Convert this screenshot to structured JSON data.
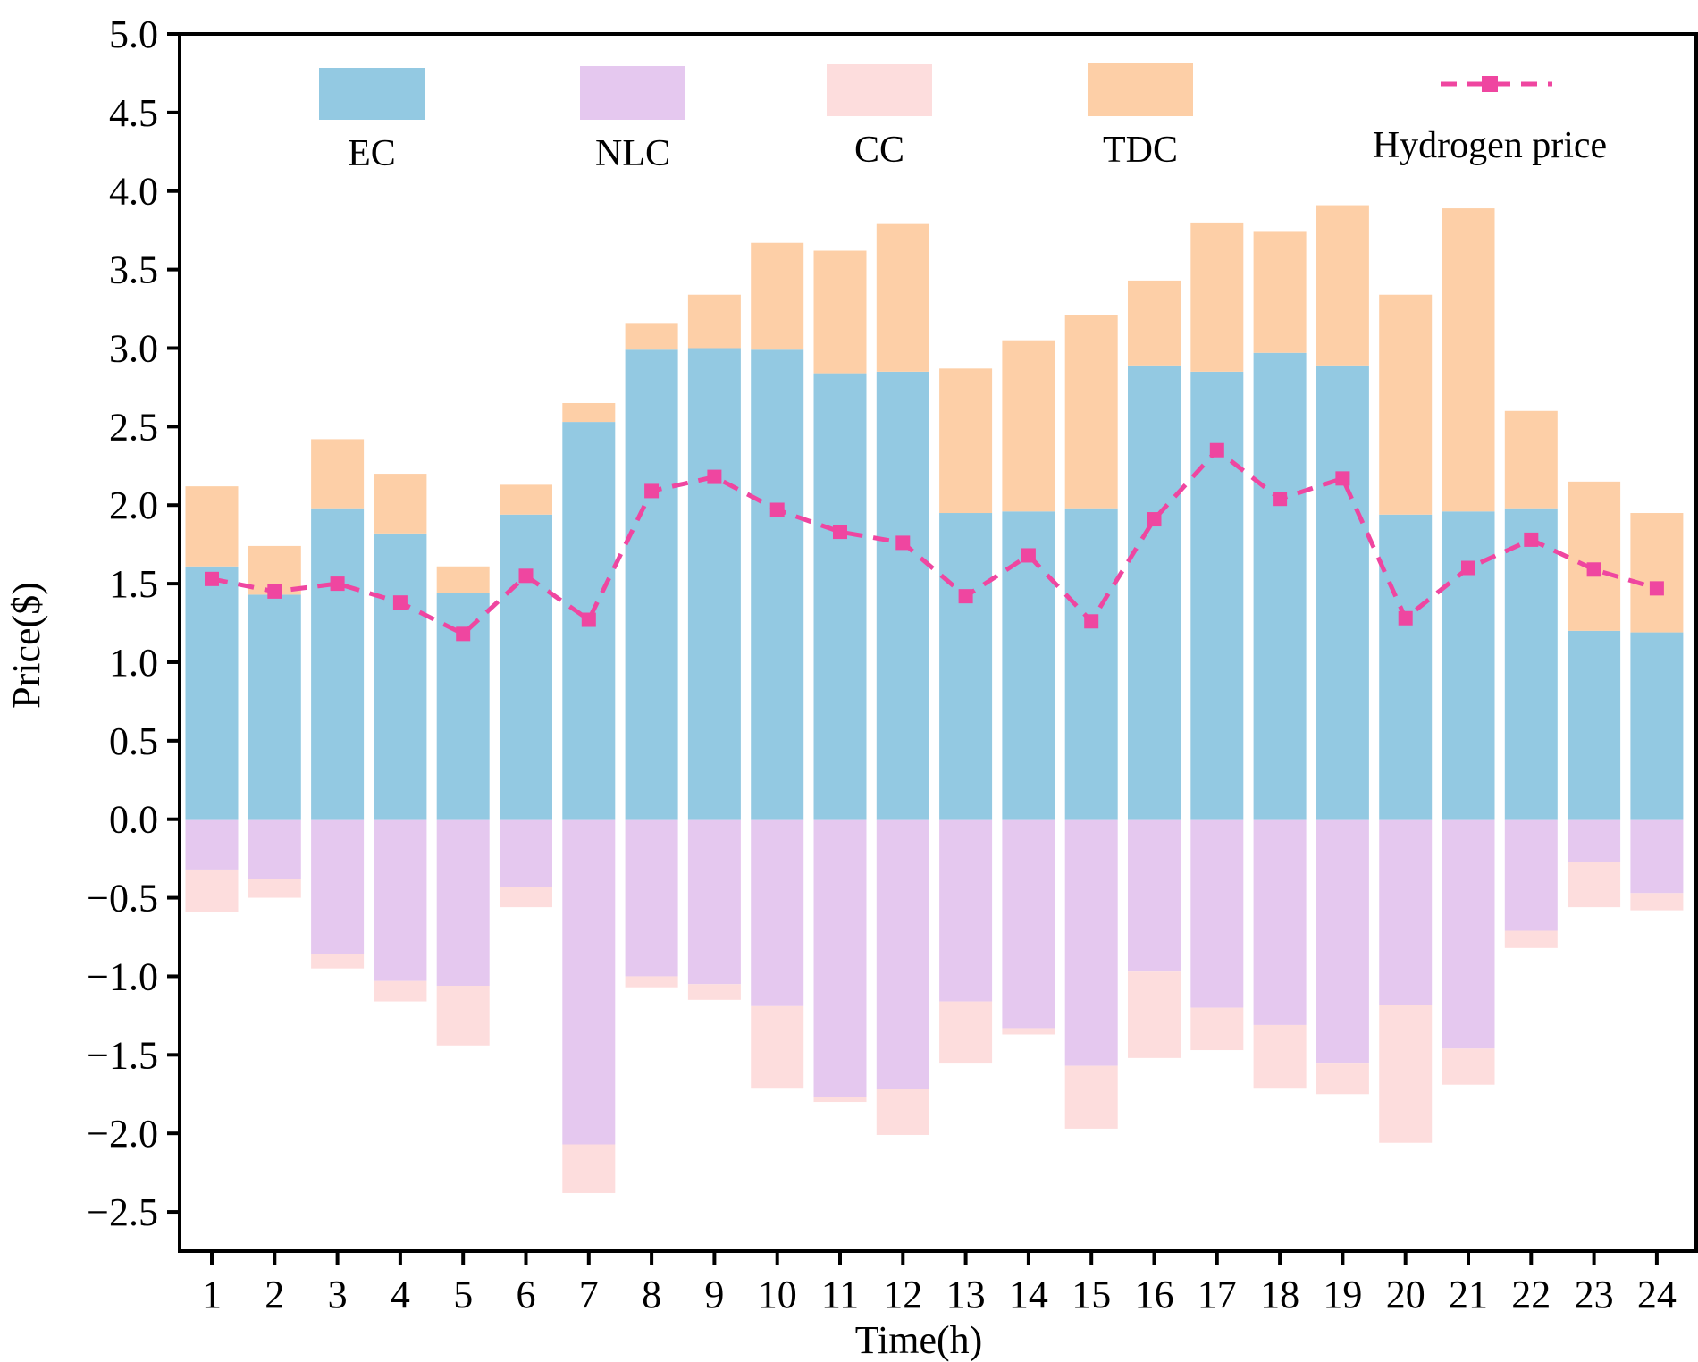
{
  "chart_data": {
    "type": "bar",
    "stacked": true,
    "title": "",
    "xlabel": "Time(h)",
    "ylabel": "Price($)",
    "ylim": [
      -2.75,
      5.0
    ],
    "yticks": [
      -2.5,
      -2.0,
      -1.5,
      -1.0,
      -0.5,
      0.0,
      0.5,
      1.0,
      1.5,
      2.0,
      2.5,
      3.0,
      3.5,
      4.0,
      4.5,
      5.0
    ],
    "ytick_labels": [
      "−2.5",
      "−2.0",
      "−1.5",
      "−1.0",
      "−0.5",
      "0.0",
      "0.5",
      "1.0",
      "1.5",
      "2.0",
      "2.5",
      "3.0",
      "3.5",
      "4.0",
      "4.5",
      "5.0"
    ],
    "categories": [
      "1",
      "2",
      "3",
      "4",
      "5",
      "6",
      "7",
      "8",
      "9",
      "10",
      "11",
      "12",
      "13",
      "14",
      "15",
      "16",
      "17",
      "18",
      "19",
      "20",
      "21",
      "22",
      "23",
      "24"
    ],
    "series": [
      {
        "name": "EC",
        "color": "#93c9e2",
        "values": [
          1.61,
          1.43,
          1.98,
          1.82,
          1.44,
          1.94,
          2.53,
          2.99,
          3.0,
          2.99,
          2.84,
          2.85,
          1.95,
          1.96,
          1.98,
          2.89,
          2.85,
          2.97,
          2.89,
          1.94,
          1.96,
          1.98,
          1.2,
          1.19
        ]
      },
      {
        "name": "TDC",
        "color": "#fdcfa7",
        "values": [
          0.51,
          0.31,
          0.44,
          0.38,
          0.17,
          0.19,
          0.12,
          0.17,
          0.34,
          0.68,
          0.78,
          0.94,
          0.92,
          1.09,
          1.23,
          0.54,
          0.95,
          0.77,
          1.02,
          1.4,
          1.93,
          0.62,
          0.95,
          0.76
        ]
      },
      {
        "name": "NLC",
        "color": "#e5c8ef",
        "values": [
          -0.32,
          -0.38,
          -0.86,
          -1.03,
          -1.06,
          -0.43,
          -2.07,
          -1.0,
          -1.05,
          -1.19,
          -1.77,
          -1.72,
          -1.16,
          -1.33,
          -1.57,
          -0.97,
          -1.2,
          -1.31,
          -1.55,
          -1.18,
          -1.46,
          -0.71,
          -0.27,
          -0.47
        ]
      },
      {
        "name": "CC",
        "color": "#fddddd",
        "values": [
          -0.27,
          -0.12,
          -0.09,
          -0.13,
          -0.38,
          -0.13,
          -0.31,
          -0.07,
          -0.1,
          -0.52,
          -0.03,
          -0.29,
          -0.39,
          -0.04,
          -0.4,
          -0.55,
          -0.27,
          -0.4,
          -0.2,
          -0.88,
          -0.23,
          -0.11,
          -0.29,
          -0.11
        ]
      }
    ],
    "line": {
      "name": "Hydrogen price",
      "color": "#ef46a0",
      "style": "dashed",
      "marker": "square",
      "values": [
        1.53,
        1.45,
        1.5,
        1.38,
        1.18,
        1.55,
        1.27,
        2.09,
        2.18,
        1.97,
        1.83,
        1.76,
        1.42,
        1.68,
        1.26,
        1.91,
        2.35,
        2.04,
        2.17,
        1.28,
        1.6,
        1.78,
        1.59,
        1.47
      ]
    },
    "legend": [
      {
        "name": "EC",
        "type": "bar",
        "color": "#93c9e2"
      },
      {
        "name": "NLC",
        "type": "bar",
        "color": "#e5c8ef"
      },
      {
        "name": "CC",
        "type": "bar",
        "color": "#fddddd"
      },
      {
        "name": "TDC",
        "type": "bar",
        "color": "#fdcfa7"
      },
      {
        "name": "Hydrogen price",
        "type": "line",
        "color": "#ef46a0"
      }
    ],
    "legend_position": "top",
    "grid": false
  }
}
